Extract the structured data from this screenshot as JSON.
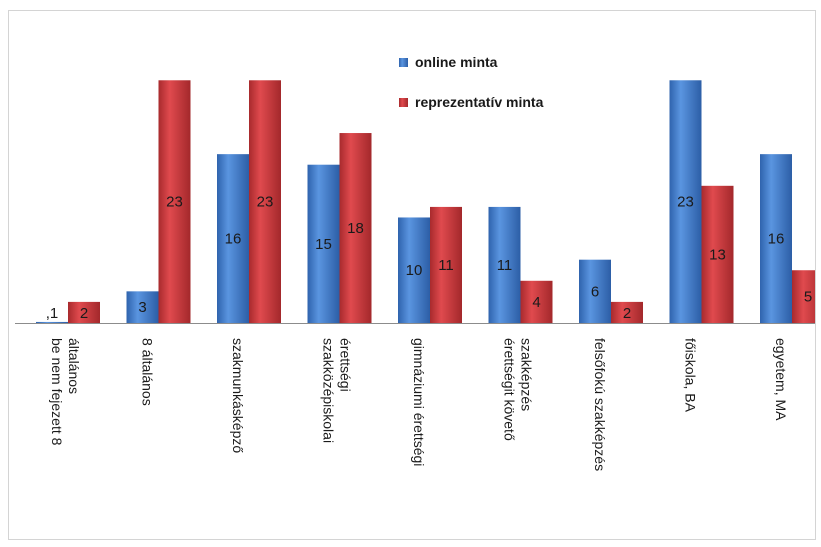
{
  "chart_data": {
    "type": "bar",
    "categories": [
      [
        "be nem fejezett 8",
        "általános"
      ],
      [
        "8 általános"
      ],
      [
        "szakmunkásképző"
      ],
      [
        "szakközépiskolai",
        "érettségi"
      ],
      [
        "gimnáziumi érettségi"
      ],
      [
        "érettségit követő",
        "szakképzés"
      ],
      [
        "felsőfokú szakképzés"
      ],
      [
        "főiskola, BA"
      ],
      [
        "egyetem, MA"
      ]
    ],
    "series": [
      {
        "name": "online minta",
        "values": [
          0.1,
          3,
          16,
          15,
          10,
          11,
          6,
          23,
          16
        ],
        "labels": [
          ",1",
          "3",
          "16",
          "15",
          "10",
          "11",
          "6",
          "23",
          "16"
        ],
        "color": "#3d78c9"
      },
      {
        "name": "reprezentatív minta",
        "values": [
          2,
          23,
          23,
          18,
          11,
          4,
          2,
          13,
          5
        ],
        "labels": [
          "2",
          "23",
          "23",
          "18",
          "11",
          "4",
          "2",
          "13",
          "5"
        ],
        "color": "#c8373b"
      }
    ],
    "ylim": [
      0,
      23.5
    ],
    "legend_position": "top-center",
    "grid": false
  }
}
